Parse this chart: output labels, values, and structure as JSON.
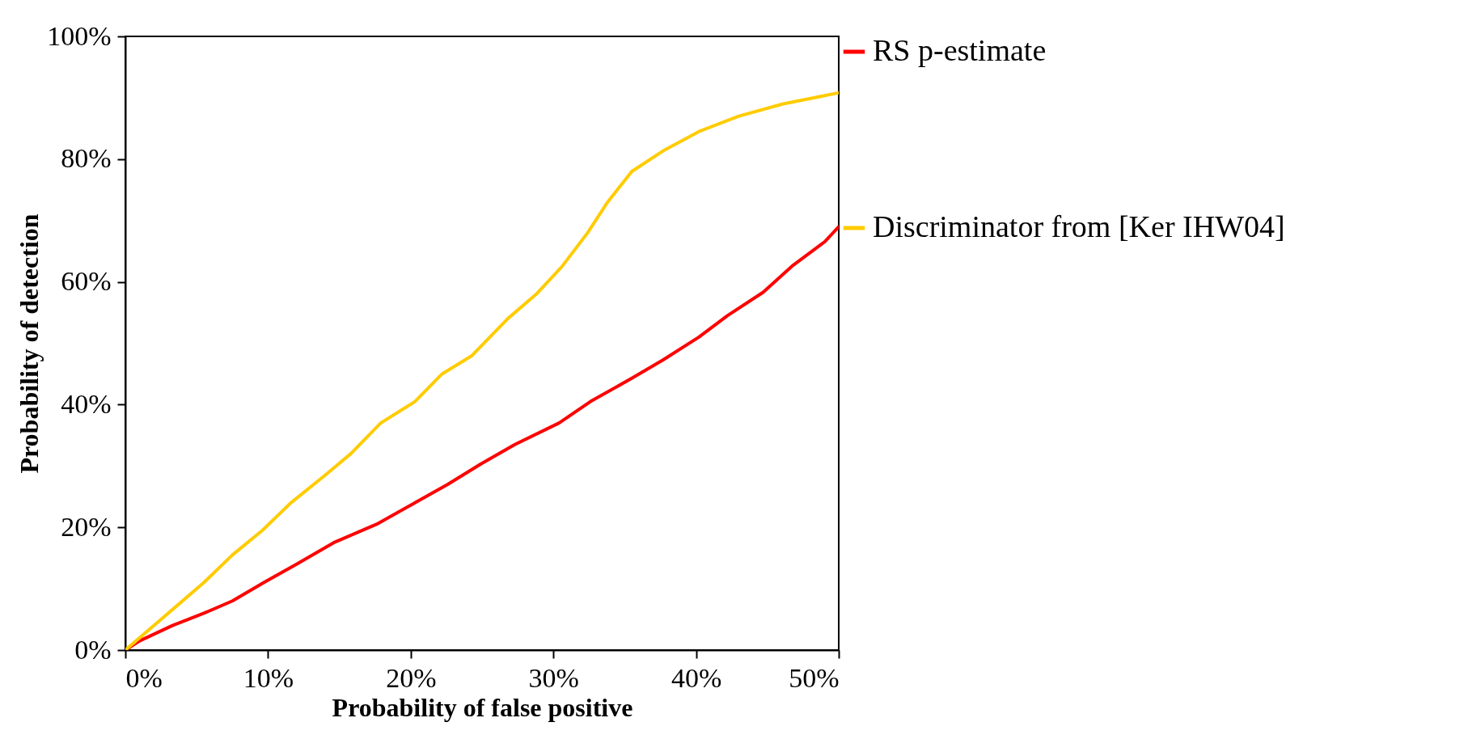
{
  "chart_data": {
    "type": "line",
    "xlabel": "Probability of false positive",
    "ylabel": "Probability of detection",
    "xlim": [
      0,
      50
    ],
    "ylim": [
      0,
      100
    ],
    "xticks": [
      {
        "value": 0,
        "label": "0%"
      },
      {
        "value": 10,
        "label": "10%"
      },
      {
        "value": 20,
        "label": "20%"
      },
      {
        "value": 30,
        "label": "30%"
      },
      {
        "value": 40,
        "label": "40%"
      },
      {
        "value": 50,
        "label": "50%"
      }
    ],
    "yticks": [
      {
        "value": 0,
        "label": "0%"
      },
      {
        "value": 20,
        "label": "20%"
      },
      {
        "value": 40,
        "label": "40%"
      },
      {
        "value": 60,
        "label": "60%"
      },
      {
        "value": 80,
        "label": "80%"
      },
      {
        "value": 100,
        "label": "100%"
      }
    ],
    "grid": false,
    "legend": "right",
    "marker": "none",
    "line_style": "solid",
    "series": [
      {
        "name": "RS p-estimate",
        "color": "#ff0000",
        "x": [
          0,
          1,
          3.3,
          5.5,
          7.5,
          9.7,
          12,
          14.6,
          17.6,
          20.3,
          22.6,
          24.9,
          27.3,
          30.4,
          32.6,
          35.5,
          37.7,
          40.2,
          42.2,
          44.7,
          46.8,
          49,
          50
        ],
        "values": [
          0,
          1.5,
          4,
          6,
          8,
          11,
          14,
          17.5,
          20.5,
          24,
          27,
          30.3,
          33.5,
          37,
          40.5,
          44.3,
          47.3,
          51,
          54.5,
          58.3,
          62.7,
          66.5,
          69
        ]
      },
      {
        "name": "Discriminator from [Ker IHW04]",
        "color": "#ffcc00",
        "x": [
          0,
          3.5,
          5.5,
          7.5,
          9.6,
          11.6,
          14,
          15.8,
          17.9,
          20.3,
          22.2,
          24.3,
          26.8,
          28.8,
          30.6,
          32.4,
          33.8,
          35.5,
          37.8,
          40.2,
          43,
          46.1,
          50
        ],
        "values": [
          0,
          7,
          11,
          15.5,
          19.5,
          24,
          28.5,
          32,
          37,
          40.5,
          45,
          48,
          54,
          58,
          62.5,
          68,
          73,
          78,
          81.5,
          84.5,
          87,
          89,
          90.8
        ]
      }
    ]
  }
}
